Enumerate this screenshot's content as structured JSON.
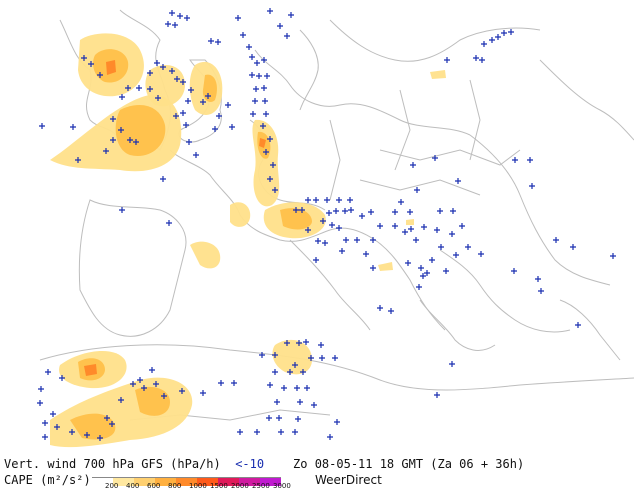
{
  "footer": {
    "title": "Vert. wind 700 hPa GFS (hPa/h)",
    "threshold": "<-10",
    "datetime": "Zo 08-05-11 18 GMT (Za 06 + 36h)",
    "cape_label": "CAPE (m²/s²)",
    "brand": "WeerDirect"
  },
  "legend": {
    "ticks": [
      "200",
      "400",
      "600",
      "800",
      "1000",
      "1500",
      "2000",
      "2500",
      "3000"
    ],
    "colors": [
      "#ffffff",
      "#ffe8a0",
      "#ffd070",
      "#ffb040",
      "#ff8a2a",
      "#ff5a1a",
      "#e01a5a",
      "#d01aa0",
      "#c01ad0"
    ]
  },
  "colors": {
    "coastline": "#bdbdbd",
    "marker": "#1a2fb0",
    "cape_low": "#ffe08a",
    "cape_mid": "#ffc04a",
    "cape_high": "#ff8a2a"
  }
}
